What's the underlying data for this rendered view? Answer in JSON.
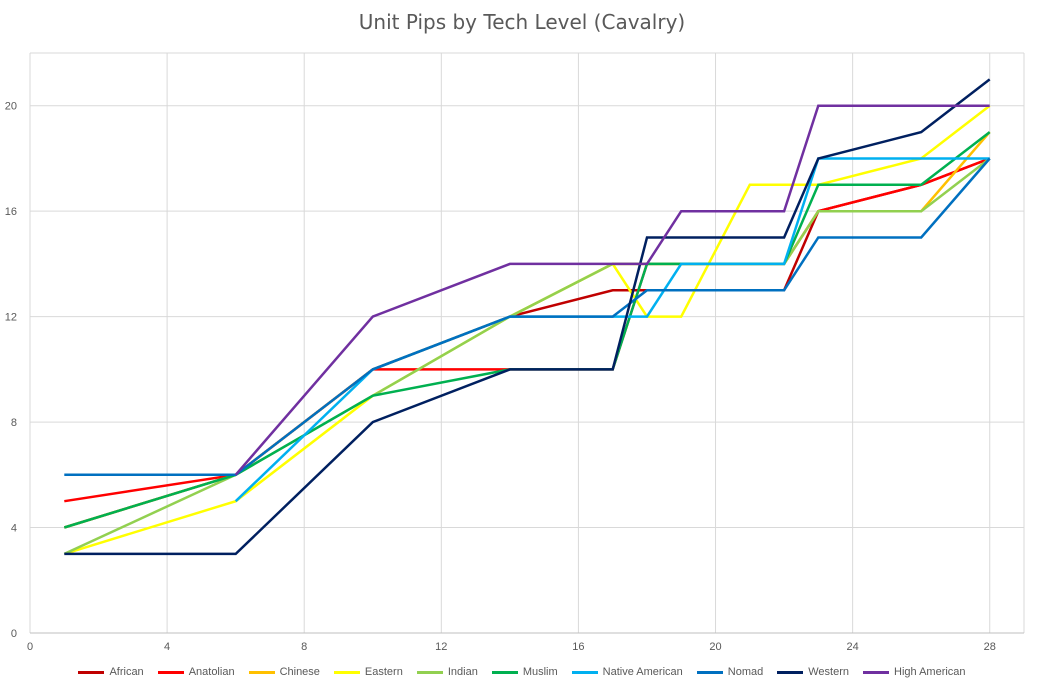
{
  "chart_data": {
    "type": "line",
    "title": "Unit Pips by Tech Level (Cavalry)",
    "xlabel": "",
    "ylabel": "",
    "xlim": [
      0,
      29
    ],
    "ylim": [
      0,
      22
    ],
    "xticks": [
      0,
      4,
      8,
      12,
      16,
      20,
      24,
      28
    ],
    "yticks": [
      0,
      4,
      8,
      12,
      16,
      20
    ],
    "grid": true,
    "legend_position": "bottom",
    "series": [
      {
        "name": "African",
        "color": "#C00000",
        "points": [
          [
            1,
            4
          ],
          [
            6,
            6
          ],
          [
            10,
            10
          ],
          [
            14,
            12
          ],
          [
            17,
            13
          ],
          [
            18,
            13
          ],
          [
            22,
            13
          ],
          [
            23,
            16
          ],
          [
            26,
            17
          ],
          [
            28,
            18
          ]
        ]
      },
      {
        "name": "Anatolian",
        "color": "#FF0000",
        "points": [
          [
            1,
            5
          ],
          [
            6,
            6
          ],
          [
            10,
            10
          ],
          [
            14,
            10
          ],
          [
            17,
            10
          ],
          [
            18,
            14
          ],
          [
            19,
            14
          ],
          [
            22,
            14
          ],
          [
            23,
            16
          ],
          [
            26,
            17
          ],
          [
            28,
            18
          ]
        ]
      },
      {
        "name": "Chinese",
        "color": "#FFC000",
        "points": [
          [
            1,
            4
          ],
          [
            6,
            6
          ],
          [
            10,
            10
          ],
          [
            14,
            12
          ],
          [
            17,
            14
          ],
          [
            18,
            14
          ],
          [
            22,
            14
          ],
          [
            23,
            16
          ],
          [
            26,
            16
          ],
          [
            28,
            19
          ]
        ]
      },
      {
        "name": "Eastern",
        "color": "#FFFF00",
        "points": [
          [
            1,
            3
          ],
          [
            6,
            5
          ],
          [
            10,
            9
          ],
          [
            14,
            12
          ],
          [
            17,
            14
          ],
          [
            18,
            12
          ],
          [
            19,
            12
          ],
          [
            21,
            17
          ],
          [
            22,
            17
          ],
          [
            23,
            17
          ],
          [
            26,
            18
          ],
          [
            28,
            20
          ]
        ]
      },
      {
        "name": "Indian",
        "color": "#92D050",
        "points": [
          [
            1,
            3
          ],
          [
            6,
            6
          ],
          [
            10,
            9
          ],
          [
            14,
            12
          ],
          [
            17,
            14
          ],
          [
            18,
            14
          ],
          [
            22,
            14
          ],
          [
            23,
            16
          ],
          [
            26,
            16
          ],
          [
            28,
            18
          ]
        ]
      },
      {
        "name": "Muslim",
        "color": "#00B050",
        "points": [
          [
            1,
            4
          ],
          [
            6,
            6
          ],
          [
            10,
            9
          ],
          [
            14,
            10
          ],
          [
            17,
            10
          ],
          [
            18,
            14
          ],
          [
            22,
            14
          ],
          [
            23,
            17
          ],
          [
            26,
            17
          ],
          [
            28,
            19
          ]
        ]
      },
      {
        "name": "Native American",
        "color": "#00B0F0",
        "points": [
          [
            6,
            5
          ],
          [
            10,
            10
          ],
          [
            14,
            12
          ],
          [
            17,
            12
          ],
          [
            18,
            12
          ],
          [
            19,
            14
          ],
          [
            22,
            14
          ],
          [
            23,
            18
          ],
          [
            26,
            18
          ],
          [
            28,
            18
          ]
        ]
      },
      {
        "name": "Nomad",
        "color": "#0070C0",
        "points": [
          [
            1,
            6
          ],
          [
            6,
            6
          ],
          [
            10,
            10
          ],
          [
            14,
            12
          ],
          [
            17,
            12
          ],
          [
            18,
            13
          ],
          [
            22,
            13
          ],
          [
            23,
            15
          ],
          [
            26,
            15
          ],
          [
            28,
            18
          ]
        ]
      },
      {
        "name": "Western",
        "color": "#002060",
        "points": [
          [
            1,
            3
          ],
          [
            6,
            3
          ],
          [
            10,
            8
          ],
          [
            14,
            10
          ],
          [
            17,
            10
          ],
          [
            18,
            15
          ],
          [
            22,
            15
          ],
          [
            23,
            18
          ],
          [
            26,
            19
          ],
          [
            28,
            21
          ]
        ]
      },
      {
        "name": "High American",
        "color": "#7030A0",
        "points": [
          [
            6,
            6
          ],
          [
            10,
            12
          ],
          [
            14,
            14
          ],
          [
            17,
            14
          ],
          [
            18,
            14
          ],
          [
            19,
            16
          ],
          [
            22,
            16
          ],
          [
            23,
            20
          ],
          [
            26,
            20
          ],
          [
            28,
            20
          ]
        ]
      }
    ]
  }
}
